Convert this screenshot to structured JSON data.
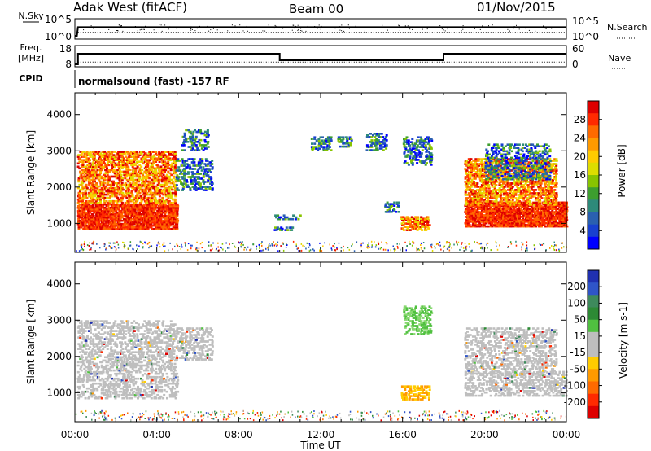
{
  "header": {
    "radar": "Adak West (fitACF)",
    "beam": "Beam 00",
    "date": "01/Nov/2015"
  },
  "panels": {
    "nsky_label": "N.Sky",
    "nsky_ticks": [
      "10^5",
      "10^0"
    ],
    "nsearch_label": "N.Search",
    "nsearch_ticks": [
      "10^5",
      "10^0"
    ],
    "freq_label_top": "Freq.",
    "freq_label_bottom": "[MHz]",
    "freq_ticks": [
      "18",
      "8"
    ],
    "nave_label": "Nave",
    "nave_ticks": [
      "60",
      "0"
    ],
    "cpid_label": "CPID",
    "cpid_text": "normalsound (fast) -157 RF"
  },
  "chart_data": [
    {
      "type": "line",
      "title": "N.Sky / N.Search",
      "x_range": [
        "00:00",
        "24:00"
      ],
      "series": [
        {
          "name": "N.Sky",
          "values": [
            [
              0.0,
              1
            ],
            [
              0.1,
              1
            ],
            [
              0.15,
              2000
            ],
            [
              24,
              2000
            ]
          ]
        },
        {
          "name": "N.Search",
          "values": [
            [
              0.15,
              20
            ],
            [
              24,
              20
            ]
          ]
        }
      ]
    },
    {
      "type": "line",
      "title": "Freq. / Nave",
      "x_range": [
        "00:00",
        "24:00"
      ],
      "series": [
        {
          "name": "Freq.",
          "values": [
            [
              0.0,
              8
            ],
            [
              0.15,
              8
            ],
            [
              0.15,
              14.5
            ],
            [
              10.0,
              14.5
            ],
            [
              10.0,
              10.5
            ],
            [
              18.0,
              10.5
            ],
            [
              18.0,
              14.5
            ],
            [
              24.0,
              14.5
            ]
          ]
        },
        {
          "name": "Nave",
          "values": [
            [
              0.15,
              10
            ],
            [
              24.0,
              10
            ]
          ]
        }
      ]
    },
    {
      "type": "heatmap",
      "title": "Power",
      "xlabel": "Time UT",
      "ylabel": "Slant Range [km]",
      "xlim": [
        0,
        24
      ],
      "ylim": [
        200,
        4600
      ],
      "x_tick_labels": [
        "00:00",
        "04:00",
        "08:00",
        "12:00",
        "16:00",
        "20:00",
        "00:00"
      ],
      "y_tick_labels": [
        "1000",
        "2000",
        "3000",
        "4000"
      ],
      "colorbar": {
        "label": "Power [dB]",
        "ticks": [
          "28",
          "24",
          "20",
          "16",
          "12",
          "8",
          "4"
        ],
        "colors": [
          "#dd0000",
          "#ff2a00",
          "#ff6a00",
          "#ff9a00",
          "#ffcc00",
          "#dddd00",
          "#88c400",
          "#3d9e2f",
          "#2e8a7a",
          "#2a60b0",
          "#1840d0",
          "#0000ff"
        ]
      },
      "regions": [
        {
          "t": [
            0.1,
            5.0
          ],
          "r": [
            830,
            1550
          ],
          "level": "high"
        },
        {
          "t": [
            0.1,
            4.9
          ],
          "r": [
            1550,
            2000
          ],
          "level": "medium"
        },
        {
          "t": [
            0.1,
            4.9
          ],
          "r": [
            2000,
            3000
          ],
          "level": "medium"
        },
        {
          "t": [
            4.9,
            6.7
          ],
          "r": [
            1900,
            2800
          ],
          "level": "low"
        },
        {
          "t": [
            5.2,
            6.5
          ],
          "r": [
            3000,
            3600
          ],
          "level": "low"
        },
        {
          "t": [
            9.7,
            11.0
          ],
          "r": [
            1100,
            1250
          ],
          "level": "low"
        },
        {
          "t": [
            9.7,
            10.6
          ],
          "r": [
            800,
            900
          ],
          "level": "low"
        },
        {
          "t": [
            11.5,
            12.5
          ],
          "r": [
            3000,
            3400
          ],
          "level": "low"
        },
        {
          "t": [
            12.8,
            13.5
          ],
          "r": [
            3100,
            3400
          ],
          "level": "low"
        },
        {
          "t": [
            15.1,
            15.8
          ],
          "r": [
            1300,
            1600
          ],
          "level": "low"
        },
        {
          "t": [
            15.9,
            17.3
          ],
          "r": [
            800,
            1200
          ],
          "level": "medium"
        },
        {
          "t": [
            14.2,
            15.2
          ],
          "r": [
            3000,
            3500
          ],
          "level": "low"
        },
        {
          "t": [
            16.0,
            17.4
          ],
          "r": [
            2600,
            3400
          ],
          "level": "low"
        },
        {
          "t": [
            19.0,
            24.0
          ],
          "r": [
            900,
            1600
          ],
          "level": "high"
        },
        {
          "t": [
            19.0,
            23.5
          ],
          "r": [
            1500,
            2800
          ],
          "level": "medium"
        },
        {
          "t": [
            20.0,
            23.2
          ],
          "r": [
            2200,
            3200
          ],
          "level": "low"
        }
      ]
    },
    {
      "type": "heatmap",
      "title": "Velocity",
      "xlabel": "Time UT",
      "ylabel": "Slant Range [km]",
      "xlim": [
        0,
        24
      ],
      "ylim": [
        200,
        4600
      ],
      "x_tick_labels": [
        "00:00",
        "04:00",
        "08:00",
        "12:00",
        "16:00",
        "20:00",
        "00:00"
      ],
      "y_tick_labels": [
        "1000",
        "2000",
        "3000",
        "4000"
      ],
      "colorbar": {
        "label": "Velocity [m s-1]",
        "ticks": [
          "200",
          "100",
          "50",
          "15",
          "-15",
          "-50",
          "-100",
          "-200"
        ],
        "colors": [
          "#2030b0",
          "#2f55c8",
          "#3e8a5c",
          "#2d8a35",
          "#50c040",
          "#bebebe",
          "#bebebe",
          "#ffcc00",
          "#ff9a00",
          "#ff6a00",
          "#ff2a00",
          "#dd0000"
        ]
      },
      "regions": [
        {
          "t": [
            0.1,
            5.0
          ],
          "r": [
            830,
            1550
          ],
          "level": "grey"
        },
        {
          "t": [
            0.1,
            4.9
          ],
          "r": [
            1550,
            2100
          ],
          "level": "grey"
        },
        {
          "t": [
            0.1,
            4.9
          ],
          "r": [
            2100,
            3000
          ],
          "level": "grey"
        },
        {
          "t": [
            4.9,
            6.7
          ],
          "r": [
            1900,
            2800
          ],
          "level": "grey"
        },
        {
          "t": [
            15.9,
            17.3
          ],
          "r": [
            800,
            1200
          ],
          "level": "orange"
        },
        {
          "t": [
            19.0,
            24.0
          ],
          "r": [
            900,
            1600
          ],
          "level": "grey"
        },
        {
          "t": [
            19.0,
            23.5
          ],
          "r": [
            1500,
            2800
          ],
          "level": "grey"
        },
        {
          "t": [
            16.0,
            17.4
          ],
          "r": [
            2600,
            3400
          ],
          "level": "green"
        }
      ]
    }
  ]
}
